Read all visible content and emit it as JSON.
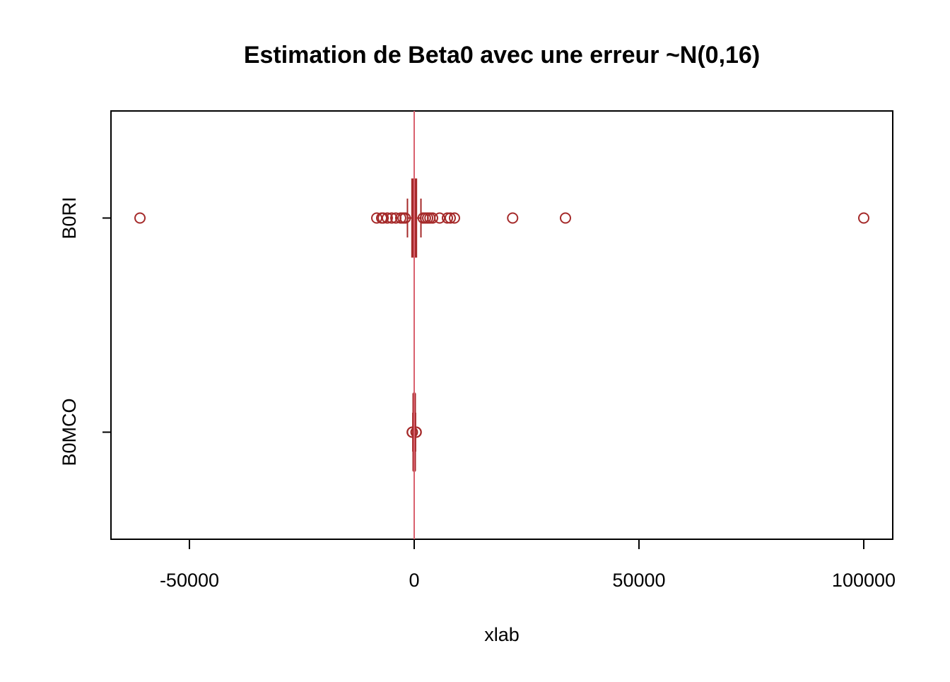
{
  "chart_data": {
    "type": "boxplot",
    "orientation": "horizontal",
    "title": "Estimation de Beta0 avec une erreur ~N(0,16)",
    "x_label": "xlab",
    "categories": [
      "B0MCO",
      "B0RI"
    ],
    "color": "#a52a2a",
    "boxes": [
      {
        "min": -300,
        "q1": -100,
        "median": 0,
        "q3": 100,
        "max": 300,
        "outliers": [
          -450,
          -400,
          400,
          450
        ]
      },
      {
        "min": -1500,
        "q1": -500,
        "median": 0,
        "q3": 500,
        "max": 1500,
        "outliers": [
          -61000,
          -8330,
          -7230,
          -6900,
          -5980,
          -5000,
          -4090,
          -3000,
          -2500,
          -2000,
          2000,
          2500,
          3000,
          3500,
          4090,
          5660,
          7390,
          8020,
          8960,
          21900,
          33650,
          100000
        ]
      }
    ],
    "vline": {
      "value": 0,
      "color": "#d9606e"
    },
    "xlim": [
      -67450,
      106450
    ],
    "xticks": [
      -50000,
      0,
      50000,
      100000
    ],
    "ylim": [
      0.5,
      2.5
    ]
  }
}
